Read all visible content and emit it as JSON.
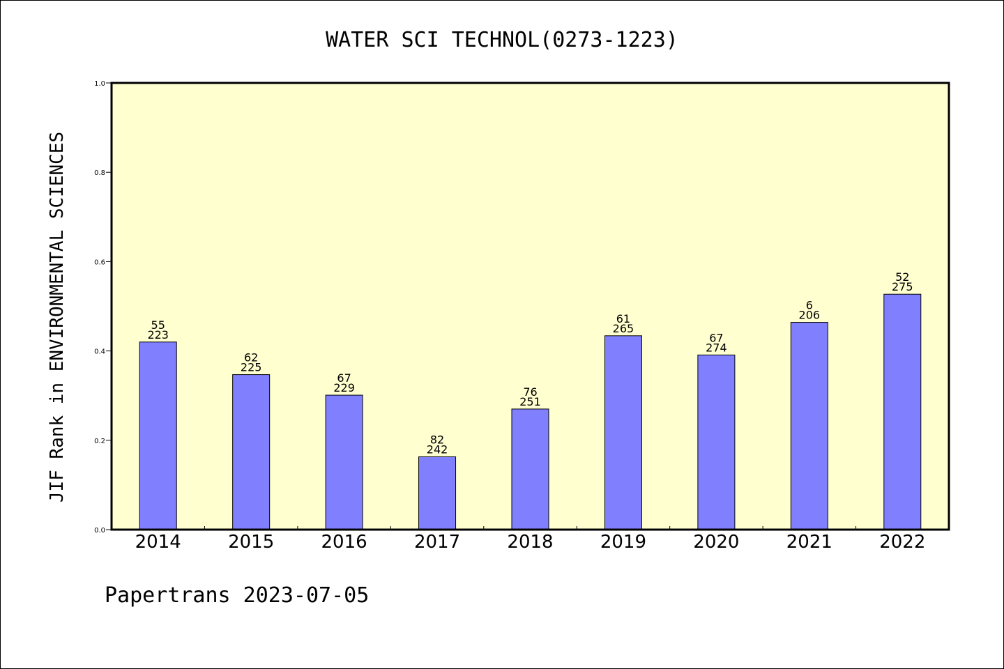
{
  "chart_data": {
    "type": "bar",
    "title": "WATER SCI TECHNOL(0273-1223)",
    "xlabel": "",
    "ylabel": "JIF Rank in ENVIRONMENTAL SCIENCES",
    "ylim": [
      0,
      1.0
    ],
    "yticks": [
      "0.0",
      "0.2",
      "0.4",
      "0.6",
      "0.8",
      "1.0"
    ],
    "categories": [
      "2014",
      "2015",
      "2016",
      "2017",
      "2018",
      "2019",
      "2020",
      "2021",
      "2022"
    ],
    "values": [
      0.42,
      0.347,
      0.301,
      0.163,
      0.27,
      0.434,
      0.391,
      0.464,
      0.527
    ],
    "rank_labels": [
      "55",
      "62",
      "67",
      "82",
      "76",
      "61",
      "67",
      "6",
      "52"
    ],
    "total_labels": [
      "223",
      "225",
      "229",
      "242",
      "251",
      "265",
      "274",
      "206",
      "275"
    ],
    "grid": false,
    "colors": {
      "plot_background": "#ffffd0",
      "bar_fill": "#8080ff",
      "bar_stroke": "#000000",
      "axis": "#000000"
    }
  },
  "footer": {
    "text": "Papertrans 2023-07-05"
  }
}
